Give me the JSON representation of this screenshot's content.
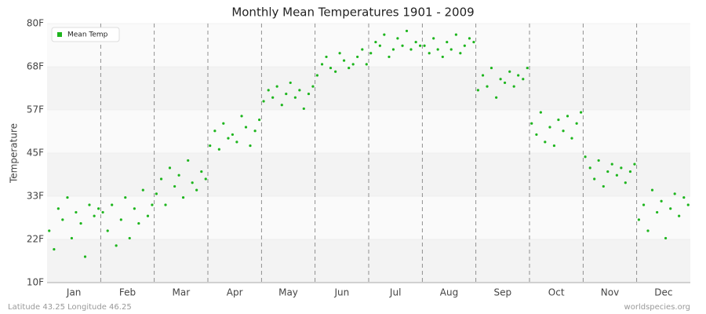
{
  "chart_data": {
    "type": "scatter",
    "title": "Monthly Mean Temperatures 1901 - 2009",
    "y_label": "Temperature",
    "footer_left": "Latitude 43.25 Longitude 46.25",
    "footer_right": "worldspecies.org",
    "categories": [
      "Jan",
      "Feb",
      "Mar",
      "Apr",
      "May",
      "Jun",
      "Jul",
      "Aug",
      "Sep",
      "Oct",
      "Nov",
      "Dec"
    ],
    "xlim": [
      0,
      12
    ],
    "ylim": [
      10,
      80
    ],
    "yticks": [
      {
        "value": 10,
        "label": "10F"
      },
      {
        "value": 21.67,
        "label": "22F"
      },
      {
        "value": 33.33,
        "label": "33F"
      },
      {
        "value": 45,
        "label": "45F"
      },
      {
        "value": 56.67,
        "label": "57F"
      },
      {
        "value": 68.33,
        "label": "68F"
      },
      {
        "value": 80,
        "label": "80F"
      }
    ],
    "legend": "top-left",
    "series": [
      {
        "name": "Mean Temp",
        "color": "#1db51d",
        "x": [
          0.04,
          0.13,
          0.21,
          0.29,
          0.38,
          0.46,
          0.54,
          0.63,
          0.71,
          0.79,
          0.88,
          0.96,
          1.04,
          1.13,
          1.21,
          1.29,
          1.38,
          1.46,
          1.54,
          1.63,
          1.71,
          1.79,
          1.88,
          1.96,
          2.04,
          2.13,
          2.21,
          2.29,
          2.38,
          2.46,
          2.54,
          2.63,
          2.71,
          2.79,
          2.88,
          2.96,
          3.04,
          3.13,
          3.21,
          3.29,
          3.38,
          3.46,
          3.54,
          3.63,
          3.71,
          3.79,
          3.88,
          3.96,
          4.04,
          4.13,
          4.21,
          4.29,
          4.38,
          4.46,
          4.54,
          4.63,
          4.71,
          4.79,
          4.88,
          4.96,
          5.04,
          5.13,
          5.21,
          5.29,
          5.38,
          5.46,
          5.54,
          5.63,
          5.71,
          5.79,
          5.88,
          5.96,
          6.04,
          6.13,
          6.21,
          6.29,
          6.38,
          6.46,
          6.54,
          6.63,
          6.71,
          6.79,
          6.88,
          6.96,
          7.04,
          7.13,
          7.21,
          7.29,
          7.38,
          7.46,
          7.54,
          7.63,
          7.71,
          7.79,
          7.88,
          7.96,
          8.04,
          8.13,
          8.21,
          8.29,
          8.38,
          8.46,
          8.54,
          8.63,
          8.71,
          8.79,
          8.88,
          8.96,
          9.04,
          9.13,
          9.21,
          9.29,
          9.38,
          9.46,
          9.54,
          9.63,
          9.71,
          9.79,
          9.88,
          9.96,
          10.04,
          10.13,
          10.21,
          10.29,
          10.38,
          10.46,
          10.54,
          10.63,
          10.71,
          10.79,
          10.88,
          10.96,
          11.04,
          11.13,
          11.21,
          11.29,
          11.38,
          11.46,
          11.54,
          11.63,
          11.71,
          11.79,
          11.88,
          11.96
        ],
        "values": [
          24,
          19,
          30,
          27,
          33,
          22,
          29,
          26,
          17,
          31,
          28,
          30,
          29,
          24,
          31,
          20,
          27,
          33,
          22,
          30,
          26,
          35,
          28,
          31,
          34,
          38,
          31,
          41,
          36,
          39,
          33,
          43,
          37,
          35,
          40,
          38,
          47,
          51,
          46,
          53,
          49,
          50,
          48,
          55,
          52,
          47,
          51,
          54,
          59,
          62,
          60,
          63,
          58,
          61,
          64,
          60,
          62,
          57,
          61,
          63,
          66,
          69,
          71,
          68,
          67,
          72,
          70,
          68,
          69,
          71,
          73,
          69,
          72,
          75,
          74,
          77,
          71,
          73,
          76,
          74,
          78,
          73,
          75,
          74,
          74,
          72,
          76,
          73,
          71,
          75,
          73,
          77,
          72,
          74,
          76,
          75,
          62,
          66,
          63,
          68,
          60,
          65,
          64,
          67,
          63,
          66,
          65,
          68,
          53,
          50,
          56,
          48,
          52,
          47,
          54,
          51,
          55,
          49,
          53,
          56,
          44,
          41,
          38,
          43,
          36,
          40,
          42,
          39,
          41,
          37,
          40,
          42,
          27,
          31,
          24,
          35,
          29,
          32,
          22,
          30,
          34,
          28,
          33,
          31
        ]
      }
    ]
  }
}
